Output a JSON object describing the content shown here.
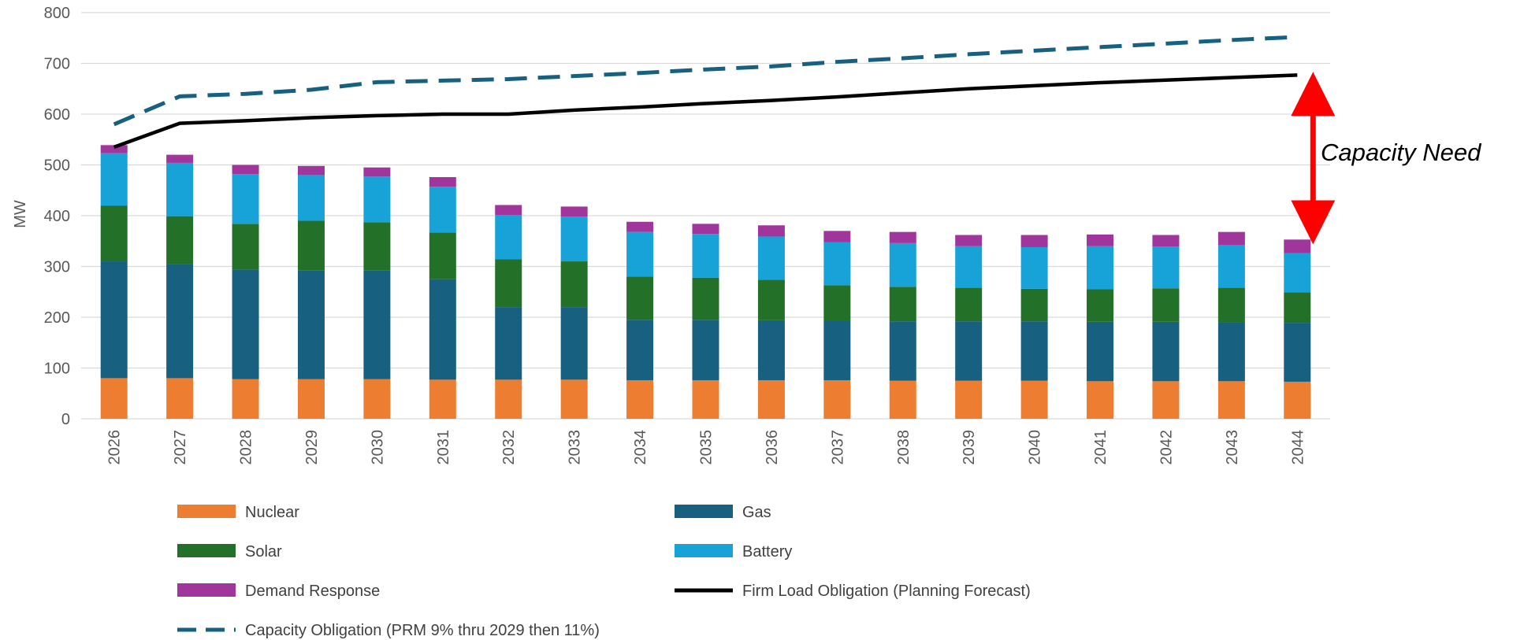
{
  "chart_data": {
    "type": "bar",
    "stacked": true,
    "categories": [
      "2026",
      "2027",
      "2028",
      "2029",
      "2030",
      "2031",
      "2032",
      "2033",
      "2034",
      "2035",
      "2036",
      "2037",
      "2038",
      "2039",
      "2040",
      "2041",
      "2042",
      "2043",
      "2044"
    ],
    "ylabel": "MW",
    "ylim": [
      0,
      800
    ],
    "yticks": [
      "0",
      "100",
      "200",
      "300",
      "400",
      "500",
      "600",
      "700",
      "800"
    ],
    "grid": true,
    "legend_position": "bottom",
    "series": [
      {
        "name": "Nuclear",
        "kind": "bar",
        "color": "#ED7D31",
        "values": [
          80,
          80,
          78,
          78,
          78,
          77,
          77,
          77,
          76,
          76,
          76,
          76,
          75,
          75,
          75,
          74,
          74,
          74,
          73
        ]
      },
      {
        "name": "Gas",
        "kind": "bar",
        "color": "#17607F",
        "values": [
          230,
          224,
          216,
          214,
          214,
          198,
          143,
          143,
          119,
          119,
          118,
          117,
          117,
          117,
          117,
          117,
          117,
          116,
          116
        ]
      },
      {
        "name": "Solar",
        "kind": "bar",
        "color": "#237028",
        "values": [
          110,
          95,
          90,
          98,
          95,
          92,
          94,
          90,
          85,
          83,
          80,
          70,
          68,
          66,
          64,
          64,
          66,
          68,
          60
        ]
      },
      {
        "name": "Battery",
        "kind": "bar",
        "color": "#17A2D8",
        "values": [
          103,
          105,
          98,
          90,
          90,
          90,
          87,
          88,
          88,
          86,
          85,
          85,
          86,
          82,
          82,
          85,
          82,
          84,
          77
        ]
      },
      {
        "name": "Demand Response",
        "kind": "bar",
        "color": "#A0359C",
        "values": [
          16,
          16,
          18,
          18,
          18,
          19,
          20,
          20,
          20,
          20,
          22,
          22,
          22,
          22,
          24,
          23,
          23,
          26,
          27
        ]
      },
      {
        "name": "Firm Load Obligation (Planning Forecast)",
        "kind": "line",
        "color": "#000000",
        "values": [
          535,
          582,
          587,
          593,
          597,
          600,
          600,
          608,
          614,
          621,
          627,
          634,
          642,
          650,
          656,
          662,
          667,
          672,
          677
        ]
      },
      {
        "name": "Capacity Obligation (PRM 9% thru 2029 then 11%)",
        "kind": "dashed-line",
        "color": "#17607F",
        "values": [
          580,
          635,
          640,
          648,
          663,
          666,
          669,
          675,
          681,
          688,
          694,
          703,
          710,
          718,
          725,
          732,
          739,
          746,
          752
        ]
      }
    ],
    "annotations": [
      {
        "text": "Capacity Need",
        "arrow_from": 677,
        "arrow_to": 353,
        "category": "2044",
        "arrow_color": "#FF0000"
      }
    ]
  }
}
